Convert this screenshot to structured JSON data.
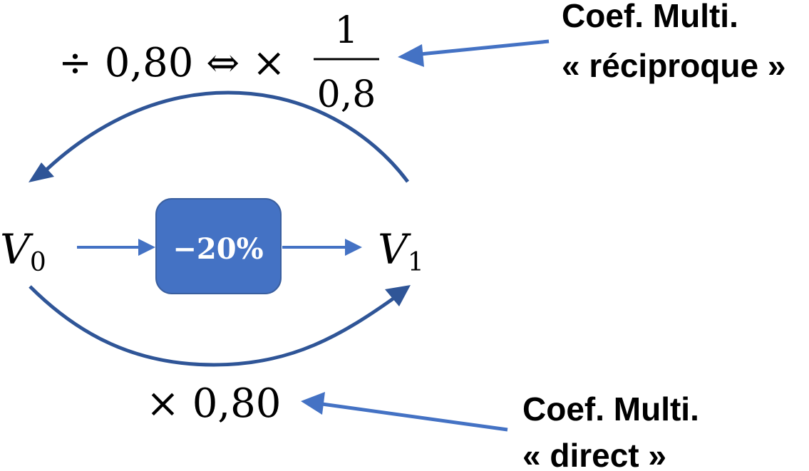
{
  "colors": {
    "curve": "#2f5597",
    "arrow": "#4472c4",
    "box_fill": "#4472c4",
    "box_stroke": "#3a5f9f",
    "text": "#000000",
    "box_text": "#ffffff"
  },
  "start_label": {
    "base": "V",
    "sub": "0"
  },
  "end_label": {
    "base": "V",
    "sub": "1"
  },
  "operation_label": "−20%",
  "reciprocal_expression": {
    "lead": "÷ 0,80 ⇔ ×",
    "numerator": "1",
    "denominator": "0,8"
  },
  "direct_expression": "× 0,80",
  "reciprocal_note": {
    "line1": "Coef. Multi.",
    "line2": "« réciproque »"
  },
  "direct_note": {
    "line1": "Coef. Multi.",
    "line2": "« direct »"
  }
}
